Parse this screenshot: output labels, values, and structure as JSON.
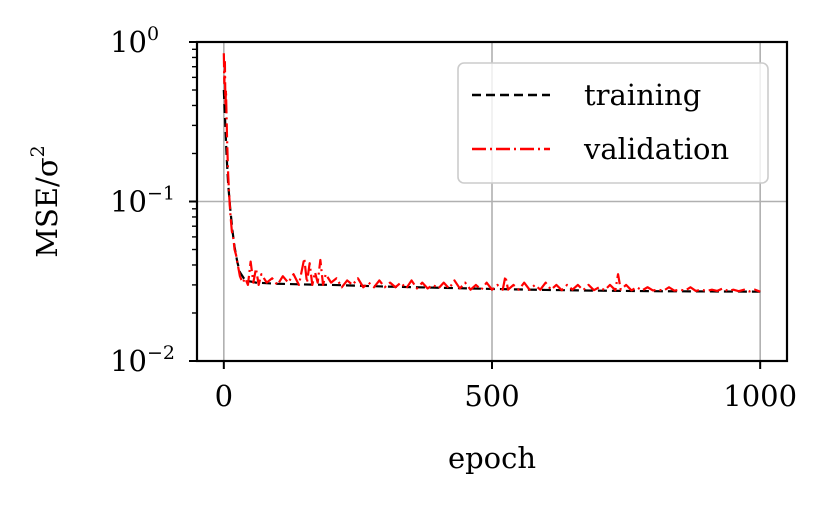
{
  "chart_data": {
    "type": "line",
    "xlabel": "epoch",
    "ylabel": "MSE/σ",
    "ylabel_superscript": "2",
    "yscale": "log",
    "xlim": [
      -50,
      1050
    ],
    "ylim": [
      0.01,
      1.0
    ],
    "grid": true,
    "legend_position": "top-right",
    "x_ticks": [
      {
        "value": 0,
        "label": "0"
      },
      {
        "value": 500,
        "label": "500"
      },
      {
        "value": 1000,
        "label": "1000"
      }
    ],
    "y_ticks": [
      {
        "value": 1.0,
        "base": "10",
        "exponent": "0"
      },
      {
        "value": 0.1,
        "base": "10",
        "exponent": "−1"
      },
      {
        "value": 0.01,
        "base": "10",
        "exponent": "−2"
      }
    ],
    "series": [
      {
        "name": "training",
        "color": "#000000",
        "linestyle": "dashed",
        "points": [
          [
            0,
            0.5
          ],
          [
            2,
            0.35
          ],
          [
            5,
            0.2
          ],
          [
            8,
            0.13
          ],
          [
            12,
            0.09
          ],
          [
            16,
            0.066
          ],
          [
            20,
            0.052
          ],
          [
            25,
            0.042
          ],
          [
            30,
            0.036
          ],
          [
            40,
            0.032
          ],
          [
            60,
            0.031
          ],
          [
            100,
            0.0305
          ],
          [
            150,
            0.0302
          ],
          [
            200,
            0.03
          ],
          [
            300,
            0.0293
          ],
          [
            400,
            0.0288
          ],
          [
            500,
            0.0283
          ],
          [
            600,
            0.0279
          ],
          [
            700,
            0.0276
          ],
          [
            800,
            0.0274
          ],
          [
            900,
            0.0273
          ],
          [
            1000,
            0.0272
          ]
        ]
      },
      {
        "name": "validation",
        "color": "#ff0000",
        "linestyle": "dashdot",
        "points": [
          [
            0,
            0.85
          ],
          [
            1,
            0.55
          ],
          [
            2,
            0.75
          ],
          [
            3,
            0.4
          ],
          [
            4,
            0.5
          ],
          [
            6,
            0.25
          ],
          [
            8,
            0.15
          ],
          [
            10,
            0.11
          ],
          [
            12,
            0.085
          ],
          [
            15,
            0.065
          ],
          [
            18,
            0.058
          ],
          [
            20,
            0.05
          ],
          [
            23,
            0.046
          ],
          [
            26,
            0.04
          ],
          [
            28,
            0.037
          ],
          [
            30,
            0.034
          ],
          [
            35,
            0.031
          ],
          [
            40,
            0.033
          ],
          [
            45,
            0.03
          ],
          [
            50,
            0.042
          ],
          [
            55,
            0.031
          ],
          [
            60,
            0.038
          ],
          [
            65,
            0.03
          ],
          [
            70,
            0.035
          ],
          [
            80,
            0.031
          ],
          [
            90,
            0.033
          ],
          [
            100,
            0.03
          ],
          [
            110,
            0.034
          ],
          [
            120,
            0.031
          ],
          [
            130,
            0.035
          ],
          [
            140,
            0.03
          ],
          [
            150,
            0.044
          ],
          [
            155,
            0.031
          ],
          [
            160,
            0.041
          ],
          [
            165,
            0.03
          ],
          [
            170,
            0.036
          ],
          [
            175,
            0.031
          ],
          [
            180,
            0.043
          ],
          [
            185,
            0.03
          ],
          [
            190,
            0.035
          ],
          [
            200,
            0.031
          ],
          [
            210,
            0.033
          ],
          [
            220,
            0.029
          ],
          [
            230,
            0.032
          ],
          [
            240,
            0.03
          ],
          [
            250,
            0.033
          ],
          [
            260,
            0.029
          ],
          [
            270,
            0.031
          ],
          [
            280,
            0.029
          ],
          [
            290,
            0.032
          ],
          [
            300,
            0.029
          ],
          [
            310,
            0.031
          ],
          [
            320,
            0.029
          ],
          [
            330,
            0.031
          ],
          [
            340,
            0.0285
          ],
          [
            350,
            0.032
          ],
          [
            360,
            0.0285
          ],
          [
            370,
            0.031
          ],
          [
            380,
            0.0285
          ],
          [
            390,
            0.03
          ],
          [
            400,
            0.0285
          ],
          [
            410,
            0.031
          ],
          [
            420,
            0.0285
          ],
          [
            430,
            0.032
          ],
          [
            440,
            0.0285
          ],
          [
            450,
            0.031
          ],
          [
            460,
            0.028
          ],
          [
            470,
            0.03
          ],
          [
            480,
            0.028
          ],
          [
            490,
            0.031
          ],
          [
            500,
            0.028
          ],
          [
            510,
            0.03
          ],
          [
            520,
            0.028
          ],
          [
            525,
            0.034
          ],
          [
            530,
            0.028
          ],
          [
            540,
            0.03
          ],
          [
            550,
            0.028
          ],
          [
            560,
            0.031
          ],
          [
            570,
            0.028
          ],
          [
            580,
            0.03
          ],
          [
            590,
            0.028
          ],
          [
            600,
            0.031
          ],
          [
            610,
            0.028
          ],
          [
            620,
            0.03
          ],
          [
            630,
            0.0278
          ],
          [
            640,
            0.03
          ],
          [
            650,
            0.028
          ],
          [
            660,
            0.03
          ],
          [
            670,
            0.0278
          ],
          [
            680,
            0.03
          ],
          [
            690,
            0.0278
          ],
          [
            700,
            0.029
          ],
          [
            710,
            0.0278
          ],
          [
            720,
            0.03
          ],
          [
            730,
            0.0278
          ],
          [
            735,
            0.035
          ],
          [
            740,
            0.028
          ],
          [
            750,
            0.03
          ],
          [
            760,
            0.0277
          ],
          [
            770,
            0.029
          ],
          [
            780,
            0.0277
          ],
          [
            790,
            0.029
          ],
          [
            800,
            0.0277
          ],
          [
            810,
            0.028
          ],
          [
            820,
            0.0276
          ],
          [
            830,
            0.029
          ],
          [
            840,
            0.0276
          ],
          [
            850,
            0.028
          ],
          [
            860,
            0.0276
          ],
          [
            870,
            0.029
          ],
          [
            880,
            0.0275
          ],
          [
            890,
            0.028
          ],
          [
            900,
            0.0275
          ],
          [
            910,
            0.028
          ],
          [
            920,
            0.0275
          ],
          [
            930,
            0.0285
          ],
          [
            940,
            0.0275
          ],
          [
            950,
            0.028
          ],
          [
            960,
            0.0274
          ],
          [
            970,
            0.028
          ],
          [
            980,
            0.0273
          ],
          [
            990,
            0.028
          ],
          [
            1000,
            0.0272
          ]
        ]
      }
    ]
  }
}
